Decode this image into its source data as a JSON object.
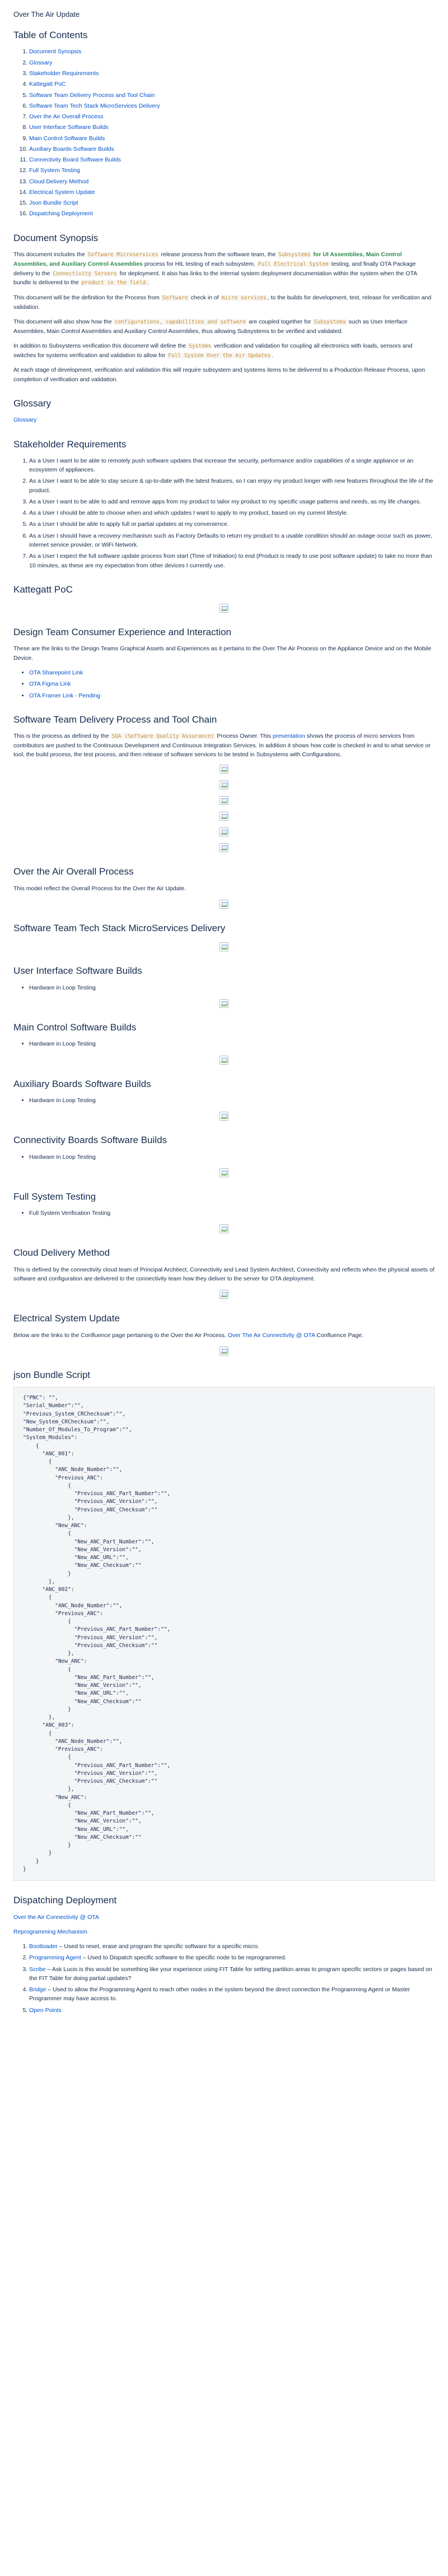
{
  "page_title": "Over The Air Update",
  "toc": {
    "heading": "Table of Contents",
    "items": [
      "Document Synopsis",
      "Glossary",
      "Stakeholder Requirements",
      "Kattegatt PoC",
      "Software Team Delivery Process and Tool Chain",
      "Software Team Tech Stack MicroServices Delivery",
      "Over the Air Overall Process",
      "User Interface Software Builds",
      "Main Control Software Builds",
      "Auxiliary Boards Software Builds",
      "Connectivity Board Software Builds",
      "Full System Testing",
      "Cloud Delivery Method",
      "Electrical System Update",
      "Json Bundle Script",
      "Dispatching Deployment"
    ]
  },
  "synopsis": {
    "heading": "Document Synopsis",
    "p1": {
      "a": "This document includes the ",
      "code1": "Software Microservices",
      "b": " release process from the software team, the ",
      "code2": "Subsystems",
      "green": " for UI Assemblies, Main Control Assemblies, and Auxiliary Control Assemblies",
      "c": " process for HIL testing of each subsystem, ",
      "code3": "Full Electrical System",
      "d": " testing, and finally OTA Package delivery to the ",
      "code4": "Connectivity Servers",
      "e": " for deployment. It also has links to the internal system deployment documentation within the system when the OTA bundle is delivered to the ",
      "code5": "product in the field.",
      "f": ""
    },
    "p2": {
      "a": "This document will be the definition for the Process from ",
      "code1": "Software",
      "b": " check in of ",
      "code2": "micro services",
      "c": ", to the builds for development, test, release for verification and validation."
    },
    "p3": {
      "a": "This document will also show how the ",
      "code1": "configurations, capabilities and software",
      "b": " are coupled together for ",
      "code2": "Subsystems",
      "c": " such as User Interface Assemblies, Main Control Assemblies and Auxiliary Control Assemblies, thus allowing Subsystems to be verified and validated."
    },
    "p4": {
      "a": "In addition to Subsystems verification this document will define the ",
      "code1": "Systems",
      "b": " verification and validation for coupling all electronics with loads, sensors and switches for systems verification and validation to allow for ",
      "code2": "Full System Over the Air Updates",
      "c": "."
    },
    "p5": "At each stage of development, verification and validation this will require subsystem and systems items to be delivered to a Production Release Process, upon completion of verification and validation."
  },
  "glossary": {
    "heading": "Glossary",
    "link": "Glossary"
  },
  "stakeholder": {
    "heading": "Stakeholder Requirements",
    "items": [
      "As a User I want to be able to remotely push software updates that increase the security, performance and/or capabilities of a single appliance or an ecosystem of appliances.",
      "As a User I want to be able to stay secure & up-to-date with the latest features, so I can enjoy my product longer with new features throughout the life of the product.",
      "As a User I want to be able to add and remove apps from my product to tailor my product to my specific usage patterns and needs, as my life changes.",
      "As a User I should be able to choose when and which updates I want to apply to my product, based on my current lifestyle.",
      "As a User I should be able to apply full or partial updates at my convenience.",
      "As a User I should have a recovery mechanism such as Factory Defaults to return my product to a usable condition should an outage occur such as power, internet service provider, or WiFi Network.",
      "As a User I expect the full software update process from start (Time of Initiation) to end (Product is ready to use post software update) to take no more than 10 minutes, as these are my expectation from other devices I currently use."
    ]
  },
  "kattegatt": {
    "heading": "Kattegatt PoC"
  },
  "design_team": {
    "heading": "Design Team Consumer Experience and Interaction",
    "intro": "These are the links to the Design Teams Graphical Assets and Experiences as it pertains to the Over The Air Process on the Appliance Device and on the Mobile Device.",
    "links": [
      "OTA Sharepoint Link",
      "OTA Figma Link",
      "OTA Framer Link - Pending"
    ]
  },
  "delivery": {
    "heading": "Software Team Delivery Process and Tool Chain",
    "p": {
      "a": "This is the process as defined by the ",
      "code1": "SQA (Software Quality Assurance)",
      "b": " Process Owner. This ",
      "link": "presentation",
      "c": " shows the process of micro services from contributors are pushed to the Continuous Development and Continuous Integration Services. In addition it shows how code is checked in and to what service or tool, the build process, the test process, and then release of software services to be tested in Subsystems with Configurations."
    }
  },
  "overall": {
    "heading": "Over the Air Overall Process",
    "p": "This model reflect the Overall Process for the Over the Air Update."
  },
  "techstack": {
    "heading": "Software Team Tech Stack MicroServices Delivery"
  },
  "ui_builds": {
    "heading": "User Interface Software Builds",
    "items": [
      "Hardware in Loop Testing"
    ]
  },
  "main_builds": {
    "heading": "Main Control Software Builds",
    "items": [
      "Hardware in Loop Testing"
    ]
  },
  "aux_builds": {
    "heading": "Auxiliary Boards Software Builds",
    "items": [
      "Hardware in Loop Testing"
    ]
  },
  "conn_builds": {
    "heading": "Connectivity Boards Software Builds",
    "items": [
      "Hardware in Loop Testing"
    ]
  },
  "full_testing": {
    "heading": "Full System Testing",
    "items": [
      "Full System Verification Testing"
    ]
  },
  "cloud": {
    "heading": "Cloud Delivery Method",
    "p": "This is defined by the connectivity cloud team of Principal Architect, Connectivity and Lead System Architect, Connectivity and reflects when the physical assets of software and configuration are delivered to the connectivity team how they deliver to the server for OTA deployment."
  },
  "electrical": {
    "heading": "Electrical System Update",
    "a": "Below are the links to the Confluence page pertaining to the Over the Air Process. ",
    "link": "Over The Air Connectivity @ OTA",
    "b": " Confluence Page."
  },
  "json_bundle": {
    "heading": "json Bundle Script",
    "code": "{\"PNC\": \"\",\n\"Serial_Number\":\"\",\n\"Previous_System_CRChecksum\":\"\",\n\"New_System_CRChecksum\":\"\",\n\"Number_Of_Modules_To_Program\":\"\",\n\"System_Modules\":\n    {\n      \"ANC_001\":\n        {\n          \"ANC_Node_Number\":\"\",\n          \"Previous_ANC\":\n              {\n                \"Previous_ANC_Part_Number\":\"\",\n                \"Previous_ANC_Version\":\"\",\n                \"Previous_ANC_Checksum\":\"\"\n              },\n          \"New_ANC\":\n              {\n                \"New_ANC_Part_Number\":\"\",\n                \"New_ANC_Version\":\"\",\n                \"New_ANC_URL\":\"\",\n                \"New_ANC_Checksum\":\"\"\n              }\n        },\n      \"ANC_002\":\n        {\n          \"ANC_Node_Number\":\"\",\n          \"Previous_ANC\":\n              {\n                \"Previous_ANC_Part_Number\":\"\",\n                \"Previous_ANC_Version\":\"\",\n                \"Previous_ANC_Checksum\":\"\"\n              },\n          \"New_ANC\":\n              {\n                \"New_ANC_Part_Number\":\"\",\n                \"New_ANC_Version\":\"\",\n                \"New_ANC_URL\":\"\",\n                \"New_ANC_Checksum\":\"\"\n              }\n        },\n      \"ANC_003\":\n        {\n          \"ANC_Node_Number\":\"\",\n          \"Previous_ANC\":\n              {\n                \"Previous_ANC_Part_Number\":\"\",\n                \"Previous_ANC_Version\":\"\",\n                \"Previous_ANC_Checksum\":\"\"\n              },\n          \"New_ANC\":\n              {\n                \"New_ANC_Part_Number\":\"\",\n                \"New_ANC_Version\":\"\",\n                \"New_ANC_URL\":\"\",\n                \"New_ANC_Checksum\":\"\"\n              }\n        }\n    }\n}"
  },
  "dispatching": {
    "heading": "Dispatching Deployment",
    "link1": "Over the Air Connectivity @ OTA",
    "link2": "Reprogramming Mechanism",
    "items": [
      {
        "link": "Bootloader",
        "text": " – Used to reset, erase and program the specific software for a specific micro."
      },
      {
        "link": "Programming Agent",
        "text": " – Used to Dispatch specific software to the specific node to be reprogrammed."
      },
      {
        "link": "Scribe",
        "text": " – Ask Lucio is this would be something like your experience using FIT Table for setting partition areas to program specific sectors or pages based on the FIT Table for doing partial updates?"
      },
      {
        "link": "Bridge",
        "text": " – Used to allow the Programming Agent to reach other nodes in the system beyond the direct connection the Programming Agent or Master Programmer may have access to."
      },
      {
        "link": "Open Points",
        "text": ""
      }
    ]
  }
}
